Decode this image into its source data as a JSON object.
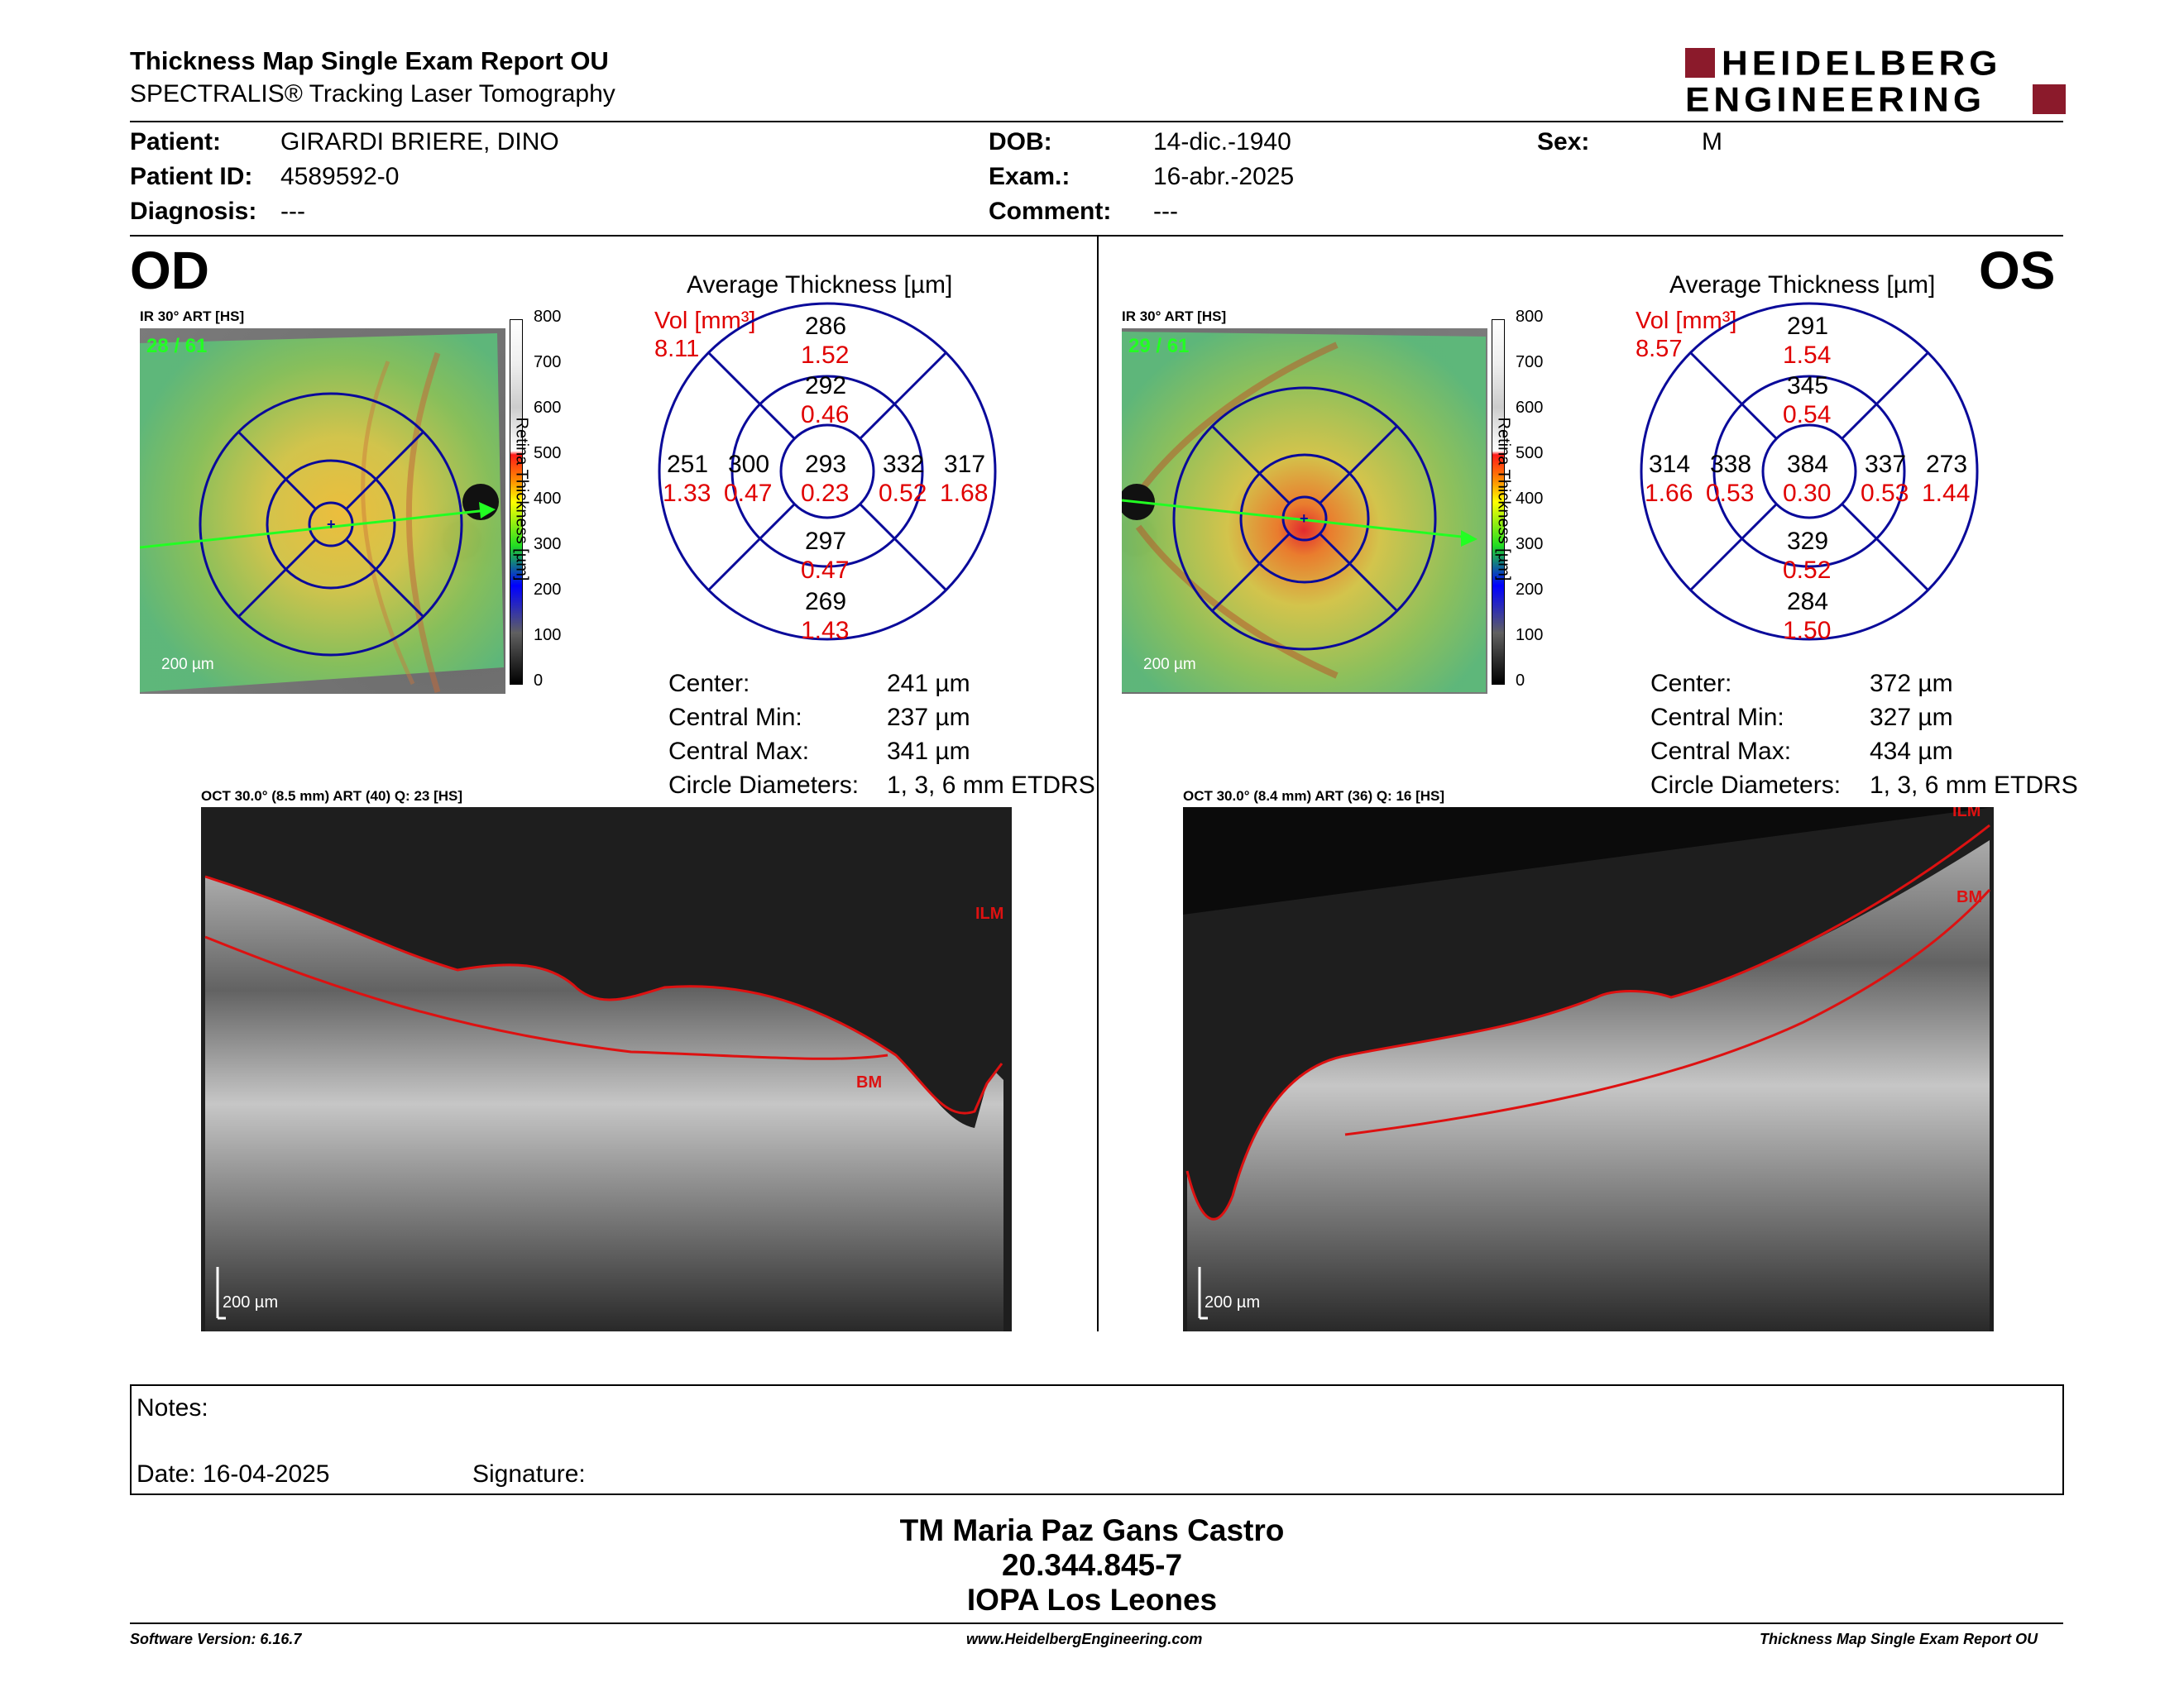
{
  "header": {
    "title": "Thickness Map Single Exam Report OU",
    "subtitle": "SPECTRALIS® Tracking Laser Tomography",
    "logo_line1": "HEIDELBERG",
    "logo_line2": "ENGINEERING",
    "logo_color": "#8B1A2B"
  },
  "patient": {
    "patient_label": "Patient:",
    "patient_value": "GIRARDI BRIERE, DINO",
    "id_label": "Patient ID:",
    "id_value": "4589592-0",
    "diagnosis_label": "Diagnosis:",
    "diagnosis_value": "---",
    "dob_label": "DOB:",
    "dob_value": "14-dic.-1940",
    "exam_label": "Exam.:",
    "exam_value": "16-abr.-2025",
    "comment_label": "Comment:",
    "comment_value": "---",
    "sex_label": "Sex:",
    "sex_value": "M"
  },
  "od": {
    "eye": "OD",
    "ir_label": "IR 30° ART [HS]",
    "frames": "28 / 61",
    "scale": "200 µm",
    "avg_title": "Average Thickness [µm]",
    "vol_label": "Vol [mm³]",
    "vol_total": "8.11",
    "sectors": {
      "center": {
        "t": "293",
        "v": "0.23"
      },
      "inner_sup": {
        "t": "292",
        "v": "0.46"
      },
      "inner_inf": {
        "t": "297",
        "v": "0.47"
      },
      "inner_left": {
        "t": "300",
        "v": "0.47"
      },
      "inner_right": {
        "t": "332",
        "v": "0.52"
      },
      "outer_sup": {
        "t": "286",
        "v": "1.52"
      },
      "outer_inf": {
        "t": "269",
        "v": "1.43"
      },
      "outer_left": {
        "t": "251",
        "v": "1.33"
      },
      "outer_right": {
        "t": "317",
        "v": "1.68"
      }
    },
    "center_label": "Center:",
    "center_value": "241 µm",
    "cmin_label": "Central Min:",
    "cmin_value": "237 µm",
    "cmax_label": "Central Max:",
    "cmax_value": "341 µm",
    "diam_label": "Circle Diameters:",
    "diam_value": "1, 3, 6 mm ETDRS",
    "oct_label": "OCT 30.0° (8.5 mm) ART (40) Q: 23 [HS]",
    "oct_scale": "200 µm",
    "ilm": "ILM",
    "bm": "BM"
  },
  "os": {
    "eye": "OS",
    "ir_label": "IR 30° ART [HS]",
    "frames": "29 / 61",
    "scale": "200 µm",
    "avg_title": "Average Thickness [µm]",
    "vol_label": "Vol [mm³]",
    "vol_total": "8.57",
    "sectors": {
      "center": {
        "t": "384",
        "v": "0.30"
      },
      "inner_sup": {
        "t": "345",
        "v": "0.54"
      },
      "inner_inf": {
        "t": "329",
        "v": "0.52"
      },
      "inner_left": {
        "t": "338",
        "v": "0.53"
      },
      "inner_right": {
        "t": "337",
        "v": "0.53"
      },
      "outer_sup": {
        "t": "291",
        "v": "1.54"
      },
      "outer_inf": {
        "t": "284",
        "v": "1.50"
      },
      "outer_left": {
        "t": "314",
        "v": "1.66"
      },
      "outer_right": {
        "t": "273",
        "v": "1.44"
      }
    },
    "center_label": "Center:",
    "center_value": "372 µm",
    "cmin_label": "Central Min:",
    "cmin_value": "327 µm",
    "cmax_label": "Central Max:",
    "cmax_value": "434 µm",
    "diam_label": "Circle Diameters:",
    "diam_value": "1, 3, 6 mm ETDRS",
    "oct_label": "OCT 30.0° (8.4 mm) ART (36) Q: 16 [HS]",
    "oct_scale": "200 µm",
    "ilm": "ILM",
    "bm": "BM"
  },
  "colorbar": {
    "title": "Retina Thickness [µm]",
    "ticks": [
      "800",
      "700",
      "600",
      "500",
      "400",
      "300",
      "200",
      "100",
      "0"
    ]
  },
  "notes": {
    "notes_label": "Notes:",
    "date_label": "Date: 16-04-2025",
    "signature_label": "Signature:"
  },
  "signatory": {
    "name": "TM Maria Paz Gans Castro",
    "rut": "20.344.845-7",
    "institution": "IOPA Los Leones"
  },
  "footer": {
    "version": "Software Version: 6.16.7",
    "url": "www.HeidelbergEngineering.com",
    "report": "Thickness Map Single Exam Report OU"
  },
  "colors": {
    "vol_red": "#e00000",
    "grid_blue": "#0a0a9a",
    "accent_green": "#22ff22",
    "segmentation_red": "#dd1111"
  }
}
